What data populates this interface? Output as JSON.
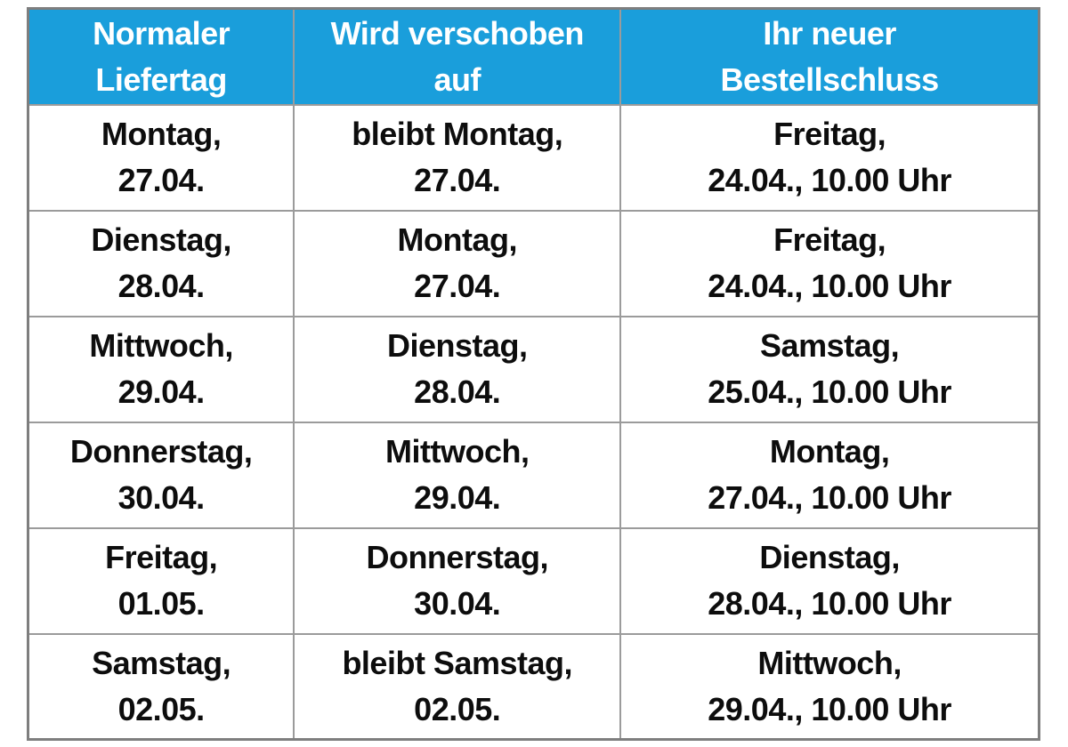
{
  "table": {
    "colors": {
      "header_bg": "#1a9edb",
      "header_text": "#ffffff",
      "body_text": "#0d0d0d",
      "grid_line": "#9b9b9b",
      "outer_border": "#7e7e7e"
    },
    "header": {
      "columns": [
        {
          "line1": "Normaler",
          "line2": "Liefertag"
        },
        {
          "line1": "Wird verschoben",
          "line2": "auf"
        },
        {
          "line1": "Ihr neuer",
          "line2": "Bestellschluss"
        }
      ]
    },
    "rows": [
      {
        "cells": [
          {
            "line1": "Montag,",
            "line2": "27.04."
          },
          {
            "line1": "bleibt Montag,",
            "line2": "27.04."
          },
          {
            "line1": "Freitag,",
            "line2": "24.04., 10.00 Uhr"
          }
        ]
      },
      {
        "cells": [
          {
            "line1": "Dienstag,",
            "line2": "28.04."
          },
          {
            "line1": "Montag,",
            "line2": "27.04."
          },
          {
            "line1": "Freitag,",
            "line2": "24.04., 10.00 Uhr"
          }
        ]
      },
      {
        "cells": [
          {
            "line1": "Mittwoch,",
            "line2": "29.04."
          },
          {
            "line1": "Dienstag,",
            "line2": "28.04."
          },
          {
            "line1": "Samstag,",
            "line2": "25.04., 10.00 Uhr"
          }
        ]
      },
      {
        "cells": [
          {
            "line1": "Donnerstag,",
            "line2": "30.04."
          },
          {
            "line1": "Mittwoch,",
            "line2": "29.04."
          },
          {
            "line1": "Montag,",
            "line2": "27.04., 10.00 Uhr"
          }
        ]
      },
      {
        "cells": [
          {
            "line1": "Freitag,",
            "line2": "01.05."
          },
          {
            "line1": "Donnerstag,",
            "line2": "30.04."
          },
          {
            "line1": "Dienstag,",
            "line2": "28.04., 10.00 Uhr"
          }
        ]
      },
      {
        "cells": [
          {
            "line1": "Samstag,",
            "line2": "02.05."
          },
          {
            "line1": "bleibt Samstag,",
            "line2": "02.05."
          },
          {
            "line1": "Mittwoch,",
            "line2": "29.04., 10.00 Uhr"
          }
        ]
      }
    ]
  }
}
